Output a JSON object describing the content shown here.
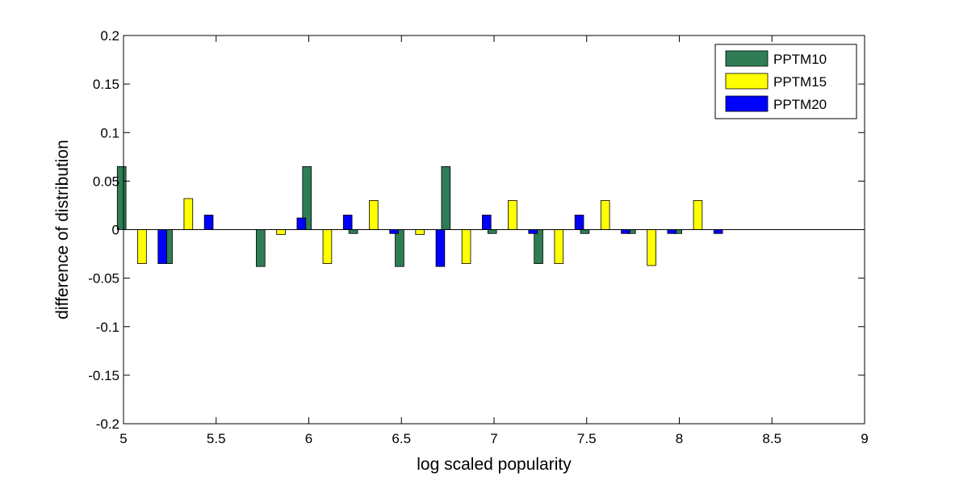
{
  "chart_data": {
    "type": "bar",
    "xlabel": "log scaled popularity",
    "ylabel": "difference of distribution",
    "xlim": [
      5,
      9
    ],
    "ylim": [
      -0.2,
      0.2
    ],
    "x_ticks": [
      "5",
      "5.5",
      "6",
      "6.5",
      "7",
      "7.5",
      "8",
      "8.5",
      "9"
    ],
    "y_ticks": [
      "0.2",
      "0.15",
      "0.1",
      "0.05",
      "0",
      "-0.05",
      "-0.1",
      "-0.15",
      "-0.2"
    ],
    "grid": false,
    "legend_position": "top-right",
    "x": [
      5.1,
      5.35,
      5.85,
      6.1,
      6.35,
      6.6,
      6.85,
      7.1,
      7.35,
      7.6,
      7.85,
      8.1
    ],
    "series": [
      {
        "name": "PPTM10",
        "color": "#2e7d55",
        "values": [
          0.065,
          -0.035,
          -0.038,
          0.065,
          -0.004,
          -0.038,
          0.065,
          -0.004,
          -0.035,
          -0.004,
          -0.004,
          -0.004
        ]
      },
      {
        "name": "PPTM15",
        "color": "#ffff00",
        "values": [
          -0.035,
          0.032,
          -0.005,
          -0.035,
          0.03,
          -0.005,
          -0.035,
          0.03,
          -0.035,
          0.03,
          -0.037,
          0.03
        ]
      },
      {
        "name": "PPTM20",
        "color": "#0000ff",
        "values": [
          -0.035,
          0.015,
          0.012,
          0.015,
          -0.004,
          -0.038,
          0.015,
          -0.004,
          0.015,
          -0.004,
          -0.004,
          -0.004
        ]
      }
    ]
  }
}
